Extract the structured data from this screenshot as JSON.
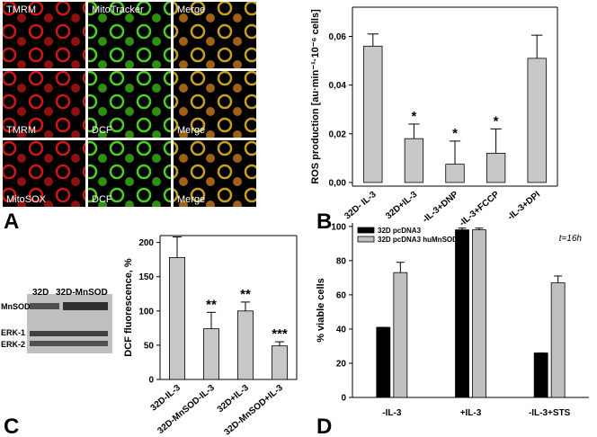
{
  "panel_a": {
    "letter": "A",
    "labels": [
      [
        "TMRM",
        "MitoTracker",
        "Merge"
      ],
      [
        "TMRM",
        "DCF",
        "Merge"
      ],
      [
        "MitoSOX",
        "DCF",
        "Merge"
      ]
    ]
  },
  "blot": {
    "letter": "C",
    "lanes": [
      "32D",
      "32D-MnSOD"
    ],
    "bands": [
      "MnSOD",
      "ERK-1",
      "ERK-2"
    ]
  },
  "chart_data": [
    {
      "type": "bar",
      "panel_label": "B",
      "ylabel": "ROS production [au·min⁻¹·10⁻⁶ cells]",
      "categories": [
        "32D- IL-3",
        "32D+IL-3",
        "-IL-3+DNP",
        "-IL-3+FCCP",
        "-IL-3+DPI"
      ],
      "values": [
        0.056,
        0.018,
        0.0075,
        0.012,
        0.051
      ],
      "errors": [
        0.005,
        0.006,
        0.0095,
        0.01,
        0.0095
      ],
      "color": "#c8c8c8",
      "ylim": [
        -0.0015,
        0.072
      ],
      "yticks": [
        {
          "value": 0,
          "label": "0,00"
        },
        {
          "value": 0.02,
          "label": "0,02"
        },
        {
          "value": 0.04,
          "label": "0,04"
        },
        {
          "value": 0.06,
          "label": "0,06"
        }
      ],
      "annotations": [
        {
          "text": "*",
          "x": "32D+IL-3"
        },
        {
          "text": "*",
          "x": "-IL-3+DNP"
        },
        {
          "text": "*",
          "x": "-IL-3+FCCP"
        }
      ]
    },
    {
      "type": "bar",
      "panel_label": "C",
      "ylabel": "DCF fluorescence, %",
      "categories": [
        "32D-IL-3",
        "32D-MnSOD-IL-3",
        "32D+IL-3",
        "32D-MnSOD+IL-3"
      ],
      "values": [
        178,
        74,
        100,
        49
      ],
      "errors": [
        30,
        24,
        13,
        6
      ],
      "color": "#c8c8c8",
      "ylim": [
        0,
        210
      ],
      "yticks": [
        0,
        50,
        100,
        150,
        200
      ],
      "annotations": [
        {
          "text": "**",
          "x": "32D-MnSOD-IL-3"
        },
        {
          "text": "**",
          "x": "32D+IL-3"
        },
        {
          "text": "***",
          "x": "32D-MnSOD+IL-3"
        }
      ]
    },
    {
      "type": "bar",
      "panel_label": "D",
      "ylabel": "% viable cells",
      "note": "t=16h",
      "categories": [
        "-IL-3",
        "+IL-3",
        "-IL-3+STS"
      ],
      "series": [
        {
          "name": "32D pcDNA3",
          "color": "#000000",
          "values": [
            41,
            98,
            26
          ],
          "errors": [
            0,
            1,
            0
          ]
        },
        {
          "name": "32D pcDNA3 huMnSOD",
          "color": "#c0c0c0",
          "values": [
            73,
            98,
            67
          ],
          "errors": [
            6,
            1,
            4
          ]
        }
      ],
      "ylim": [
        0,
        102
      ],
      "yticks": [
        0,
        20,
        40,
        60,
        80,
        100
      ]
    }
  ]
}
